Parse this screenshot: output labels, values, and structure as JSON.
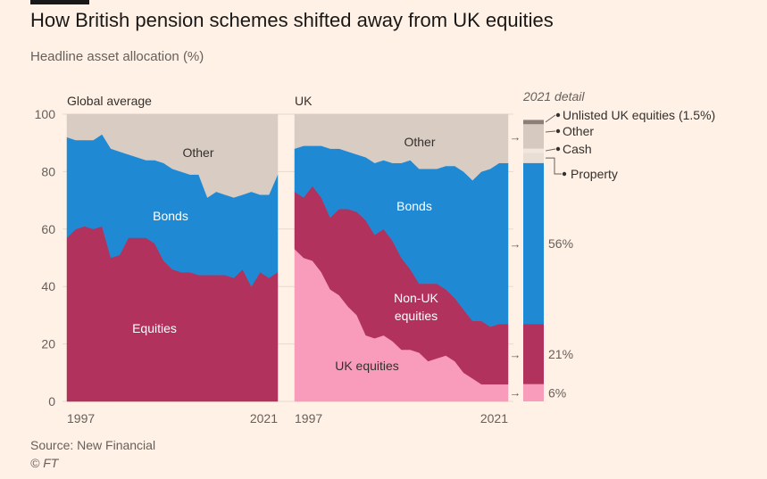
{
  "title": "How British pension schemes shifted away from UK equities",
  "subtitle": "Headline asset allocation (%)",
  "source": "Source: New Financial",
  "credit": "© FT",
  "colors": {
    "background": "#fff1e5",
    "equities": "#b1325c",
    "bonds": "#1f8ad3",
    "other": "#d9ccc3",
    "uk_equities": "#f99bba",
    "unlisted": "#8a7f78",
    "property": "#e9ded6",
    "cash": "#f2e7df",
    "detail_other": "#d6c9c0"
  },
  "chart_data": [
    {
      "type": "area",
      "stacked": true,
      "title": "Global average",
      "ylim": [
        0,
        100
      ],
      "yticks": [
        0,
        20,
        40,
        60,
        80,
        100
      ],
      "x_range": [
        1997,
        2021
      ],
      "xtick_labels": [
        "1997",
        "2021"
      ],
      "x": [
        1997,
        1998,
        1999,
        2000,
        2001,
        2002,
        2003,
        2004,
        2005,
        2006,
        2007,
        2008,
        2009,
        2010,
        2011,
        2012,
        2013,
        2014,
        2015,
        2016,
        2017,
        2018,
        2019,
        2020,
        2021
      ],
      "series": [
        {
          "name": "Equities",
          "values": [
            57,
            60,
            61,
            60,
            61,
            50,
            51,
            57,
            57,
            57,
            55,
            49,
            46,
            45,
            45,
            44,
            44,
            44,
            44,
            43,
            46,
            40,
            45,
            43,
            45
          ]
        },
        {
          "name": "Bonds",
          "values": [
            35,
            31,
            30,
            31,
            32,
            38,
            36,
            29,
            28,
            27,
            29,
            34,
            35,
            35,
            34,
            35,
            27,
            29,
            28,
            28,
            26,
            33,
            27,
            29,
            34
          ]
        },
        {
          "name": "Other",
          "values": [
            8,
            9,
            9,
            9,
            7,
            12,
            13,
            14,
            15,
            16,
            16,
            17,
            19,
            20,
            21,
            21,
            29,
            27,
            28,
            29,
            28,
            27,
            28,
            28,
            21
          ]
        }
      ]
    },
    {
      "type": "area",
      "stacked": true,
      "title": "UK",
      "ylim": [
        0,
        100
      ],
      "x_range": [
        1997,
        2021
      ],
      "xtick_labels": [
        "1997",
        "2021"
      ],
      "x": [
        1997,
        1998,
        1999,
        2000,
        2001,
        2002,
        2003,
        2004,
        2005,
        2006,
        2007,
        2008,
        2009,
        2010,
        2011,
        2012,
        2013,
        2014,
        2015,
        2016,
        2017,
        2018,
        2019,
        2020,
        2021
      ],
      "series": [
        {
          "name": "UK equities",
          "values": [
            53,
            50,
            49,
            45,
            39,
            37,
            33,
            30,
            23,
            22,
            23,
            21,
            18,
            18,
            17,
            14,
            15,
            16,
            14,
            10,
            8,
            6,
            6,
            6,
            6
          ]
        },
        {
          "name": "Non-UK equities",
          "values": [
            20,
            21,
            26,
            26,
            25,
            30,
            34,
            36,
            40,
            36,
            37,
            35,
            32,
            28,
            24,
            27,
            26,
            23,
            22,
            22,
            20,
            22,
            20,
            21,
            21
          ]
        },
        {
          "name": "Bonds",
          "values": [
            15,
            18,
            14,
            18,
            24,
            21,
            20,
            20,
            22,
            25,
            24,
            27,
            33,
            38,
            40,
            40,
            40,
            43,
            46,
            48,
            49,
            52,
            55,
            56,
            56
          ]
        },
        {
          "name": "Other",
          "values": [
            12,
            11,
            11,
            11,
            12,
            12,
            13,
            14,
            15,
            17,
            16,
            17,
            17,
            16,
            19,
            19,
            19,
            18,
            18,
            20,
            23,
            20,
            19,
            17,
            17
          ]
        }
      ]
    },
    {
      "type": "bar",
      "stacked": true,
      "title": "2021 detail",
      "ylim": [
        0,
        100
      ],
      "segments": [
        {
          "label": "6%",
          "value": 6
        },
        {
          "label": "21%",
          "value": 21
        },
        {
          "label": "56%",
          "value": 56
        },
        {
          "label": "Property",
          "value": 3.5
        },
        {
          "label": "Cash",
          "value": 1.5
        },
        {
          "label": "Other",
          "value": 8.5
        },
        {
          "label": "Unlisted UK equities (1.5%)",
          "value": 1.5
        }
      ]
    }
  ]
}
